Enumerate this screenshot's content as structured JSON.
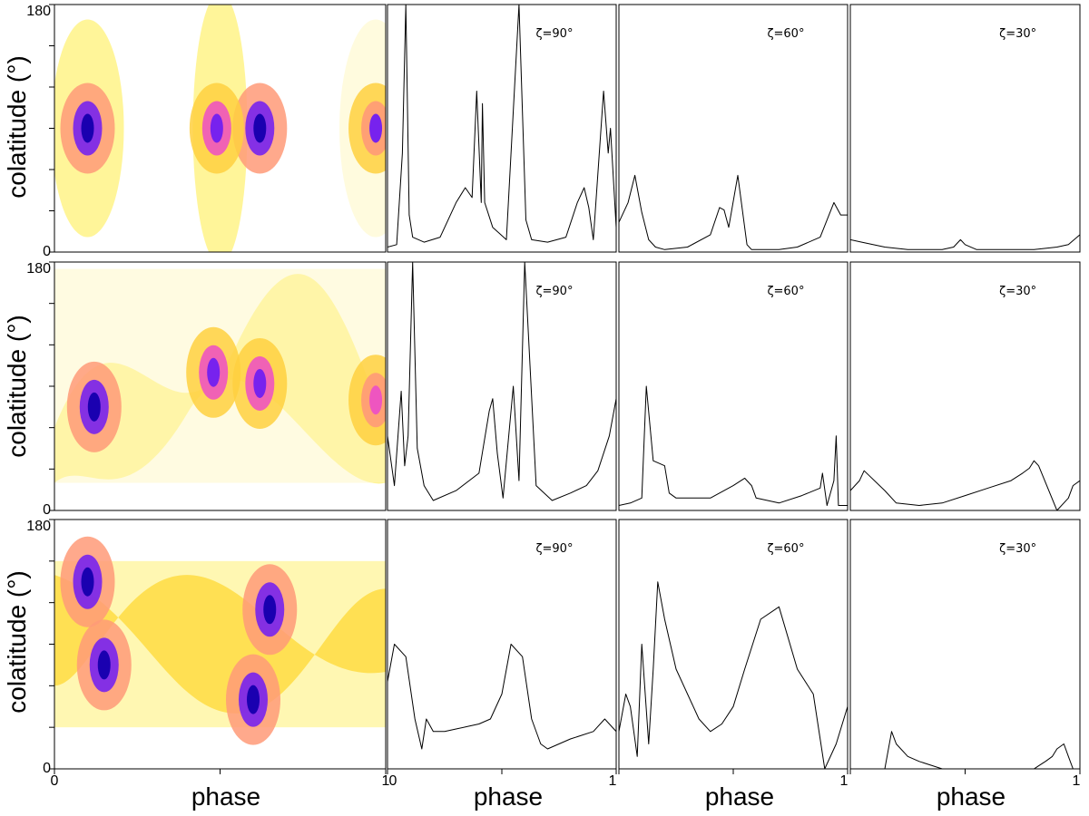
{
  "figure": {
    "y_axis_label": "colatitude (°)",
    "x_axis_label": "phase",
    "colormap": [
      "#ffffff",
      "#fff8c8",
      "#ffee55",
      "#ffd040",
      "#ff9a78",
      "#ee55c0",
      "#7722ee",
      "#1a00b0"
    ],
    "line_color": "#000000"
  },
  "chart_data": [
    {
      "type": "heatmap",
      "row": 1,
      "x": {
        "range": [
          0,
          1
        ],
        "ticks": [
          0,
          0.5,
          1
        ],
        "tick_labels": [
          "0",
          "",
          "1"
        ]
      },
      "y": {
        "range": [
          0,
          180
        ],
        "ticks": [
          0,
          30,
          60,
          90,
          120,
          150,
          180
        ],
        "tick_labels": [
          "0",
          "",
          "",
          "",
          "",
          "",
          "180"
        ]
      },
      "features": [
        {
          "phase": 0.1,
          "colatitude": 90,
          "intensity": 1.0
        },
        {
          "phase": 0.62,
          "colatitude": 90,
          "intensity": 1.0
        },
        {
          "phase": 0.49,
          "colatitude": 90,
          "intensity": 0.9
        },
        {
          "phase": 0.97,
          "colatitude": 90,
          "intensity": 0.8
        }
      ]
    },
    {
      "type": "line",
      "row": 1,
      "label": "ζ=90°",
      "xlim": [
        0,
        1
      ],
      "x": [
        0,
        0.04,
        0.065,
        0.08,
        0.095,
        0.11,
        0.16,
        0.23,
        0.3,
        0.34,
        0.37,
        0.39,
        0.41,
        0.415,
        0.425,
        0.46,
        0.52,
        0.575,
        0.605,
        0.63,
        0.7,
        0.78,
        0.83,
        0.86,
        0.88,
        0.9,
        0.945,
        0.965,
        0.975,
        1
      ],
      "y": [
        0.02,
        0.03,
        0.4,
        1.0,
        0.15,
        0.06,
        0.04,
        0.06,
        0.2,
        0.26,
        0.22,
        0.65,
        0.2,
        0.6,
        0.2,
        0.1,
        0.05,
        1.0,
        0.13,
        0.05,
        0.04,
        0.06,
        0.2,
        0.26,
        0.18,
        0.05,
        0.65,
        0.4,
        0.5,
        0.1
      ]
    },
    {
      "type": "line",
      "row": 1,
      "label": "ζ=60°",
      "xlim": [
        0,
        1
      ],
      "x": [
        0,
        0.04,
        0.07,
        0.1,
        0.13,
        0.16,
        0.2,
        0.3,
        0.4,
        0.44,
        0.46,
        0.48,
        0.52,
        0.56,
        0.58,
        0.62,
        0.7,
        0.78,
        0.88,
        0.94,
        0.97,
        1
      ],
      "y": [
        0.12,
        0.2,
        0.31,
        0.16,
        0.05,
        0.02,
        0.01,
        0.02,
        0.07,
        0.18,
        0.17,
        0.1,
        0.31,
        0.03,
        0.01,
        0.01,
        0.01,
        0.02,
        0.06,
        0.2,
        0.15,
        0.15
      ]
    },
    {
      "type": "line",
      "row": 1,
      "label": "ζ=30°",
      "xlim": [
        0,
        1
      ],
      "x": [
        0,
        0.05,
        0.15,
        0.25,
        0.35,
        0.4,
        0.45,
        0.48,
        0.5,
        0.55,
        0.6,
        0.7,
        0.8,
        0.9,
        0.95,
        1
      ],
      "y": [
        0.05,
        0.04,
        0.02,
        0.01,
        0.01,
        0.01,
        0.02,
        0.05,
        0.03,
        0.01,
        0.01,
        0.01,
        0.01,
        0.02,
        0.03,
        0.07
      ]
    },
    {
      "type": "heatmap",
      "row": 2,
      "x": {
        "range": [
          0,
          1
        ],
        "ticks": [
          0,
          0.5,
          1
        ],
        "tick_labels": [
          "0",
          "",
          "1"
        ]
      },
      "y": {
        "range": [
          0,
          180
        ],
        "ticks": [
          0,
          30,
          60,
          90,
          120,
          150,
          180
        ],
        "tick_labels": [
          "0",
          "",
          "",
          "",
          "",
          "",
          "180"
        ]
      },
      "features": [
        {
          "phase": 0.12,
          "colatitude": 75,
          "intensity": 1.0
        },
        {
          "phase": 0.48,
          "colatitude": 100,
          "intensity": 0.9
        },
        {
          "phase": 0.62,
          "colatitude": 92,
          "intensity": 0.9
        },
        {
          "phase": 0.97,
          "colatitude": 80,
          "intensity": 0.7
        }
      ]
    },
    {
      "type": "line",
      "row": 2,
      "label": "ζ=90°",
      "xlim": [
        0,
        1
      ],
      "x": [
        0,
        0.03,
        0.06,
        0.075,
        0.09,
        0.11,
        0.13,
        0.16,
        0.2,
        0.3,
        0.4,
        0.445,
        0.46,
        0.48,
        0.505,
        0.55,
        0.575,
        0.6,
        0.65,
        0.72,
        0.8,
        0.87,
        0.92,
        0.97,
        1
      ],
      "y": [
        0.3,
        0.1,
        0.48,
        0.18,
        0.3,
        1.0,
        0.25,
        0.1,
        0.04,
        0.08,
        0.15,
        0.4,
        0.45,
        0.23,
        0.05,
        0.5,
        0.12,
        1.0,
        0.1,
        0.04,
        0.07,
        0.1,
        0.16,
        0.3,
        0.45
      ]
    },
    {
      "type": "line",
      "row": 2,
      "label": "ζ=60°",
      "xlim": [
        0,
        1
      ],
      "x": [
        0,
        0.05,
        0.1,
        0.12,
        0.15,
        0.2,
        0.22,
        0.25,
        0.3,
        0.4,
        0.5,
        0.55,
        0.58,
        0.6,
        0.7,
        0.8,
        0.88,
        0.89,
        0.91,
        0.94,
        0.95,
        0.96,
        1
      ],
      "y": [
        0.02,
        0.03,
        0.05,
        0.5,
        0.2,
        0.18,
        0.07,
        0.05,
        0.05,
        0.05,
        0.1,
        0.13,
        0.1,
        0.05,
        0.03,
        0.06,
        0.09,
        0.15,
        0.02,
        0.12,
        0.3,
        0.02,
        0.02
      ]
    },
    {
      "type": "line",
      "row": 2,
      "label": "ζ=30°",
      "xlim": [
        0,
        1
      ],
      "x": [
        0,
        0.04,
        0.06,
        0.15,
        0.2,
        0.3,
        0.4,
        0.5,
        0.6,
        0.7,
        0.75,
        0.78,
        0.8,
        0.82,
        0.9,
        0.95,
        0.97,
        1
      ],
      "y": [
        0.08,
        0.12,
        0.16,
        0.08,
        0.03,
        0.02,
        0.03,
        0.06,
        0.09,
        0.12,
        0.15,
        0.17,
        0.2,
        0.18,
        0.0,
        0.05,
        0.1,
        0.12
      ]
    },
    {
      "type": "heatmap",
      "row": 3,
      "x": {
        "range": [
          0,
          1
        ],
        "ticks": [
          0,
          0.5,
          1
        ],
        "tick_labels": [
          "0",
          "",
          "1"
        ]
      },
      "y": {
        "range": [
          0,
          180
        ],
        "ticks": [
          0,
          30,
          60,
          90,
          120,
          150,
          180
        ],
        "tick_labels": [
          "0",
          "",
          "",
          "",
          "",
          "",
          "180"
        ]
      },
      "features": [
        {
          "phase": 0.1,
          "colatitude": 135,
          "intensity": 1.0
        },
        {
          "phase": 0.15,
          "colatitude": 75,
          "intensity": 1.0
        },
        {
          "phase": 0.65,
          "colatitude": 115,
          "intensity": 1.0
        },
        {
          "phase": 0.6,
          "colatitude": 50,
          "intensity": 1.0
        }
      ]
    },
    {
      "type": "line",
      "row": 3,
      "label": "ζ=90°",
      "xlim": [
        0,
        1
      ],
      "x": [
        0,
        0.03,
        0.08,
        0.12,
        0.15,
        0.17,
        0.2,
        0.25,
        0.3,
        0.35,
        0.4,
        0.45,
        0.5,
        0.54,
        0.59,
        0.63,
        0.67,
        0.7,
        0.8,
        0.9,
        0.95,
        1
      ],
      "y": [
        0.35,
        0.5,
        0.45,
        0.2,
        0.08,
        0.2,
        0.15,
        0.15,
        0.16,
        0.17,
        0.18,
        0.2,
        0.3,
        0.5,
        0.45,
        0.2,
        0.1,
        0.08,
        0.12,
        0.15,
        0.2,
        0.15
      ]
    },
    {
      "type": "line",
      "row": 3,
      "label": "ζ=60°",
      "xlim": [
        0,
        1
      ],
      "x": [
        0,
        0.03,
        0.05,
        0.08,
        0.1,
        0.13,
        0.15,
        0.17,
        0.2,
        0.25,
        0.3,
        0.35,
        0.4,
        0.45,
        0.5,
        0.55,
        0.62,
        0.7,
        0.78,
        0.85,
        0.9,
        0.95,
        1
      ],
      "y": [
        0.15,
        0.3,
        0.25,
        0.05,
        0.5,
        0.1,
        0.4,
        0.75,
        0.6,
        0.4,
        0.3,
        0.2,
        0.15,
        0.18,
        0.25,
        0.4,
        0.6,
        0.65,
        0.4,
        0.3,
        0.0,
        0.1,
        0.25
      ]
    },
    {
      "type": "line",
      "row": 3,
      "label": "ζ=30°",
      "xlim": [
        0,
        1
      ],
      "x": [
        0.15,
        0.18,
        0.2,
        0.25,
        0.3,
        0.4,
        0.8,
        0.85,
        0.88,
        0.9,
        0.93,
        0.95,
        0.97
      ],
      "y": [
        0.0,
        0.15,
        0.1,
        0.05,
        0.03,
        0.0,
        0.0,
        0.03,
        0.05,
        0.08,
        0.1,
        0.05,
        0.0
      ]
    }
  ]
}
